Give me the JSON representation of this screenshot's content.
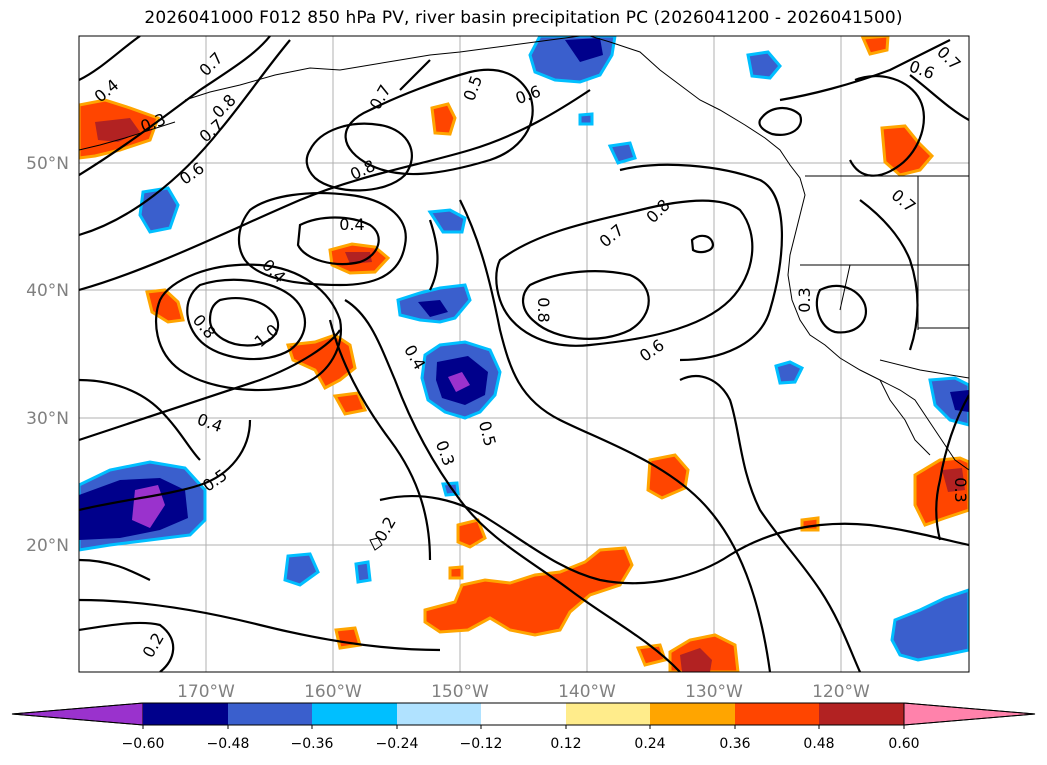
{
  "title": "2026041000 F012 850 hPa PV, river basin precipitation PC (2026041200 - 2026041500)",
  "lat_labels": [
    "50°N",
    "40°N",
    "30°N",
    "20°N"
  ],
  "lon_labels": [
    "170°W",
    "160°W",
    "150°W",
    "140°W",
    "130°W",
    "120°W"
  ],
  "contour_labels": [
    "0.4",
    "0.7",
    "0.8",
    "0.7",
    "0.6",
    "0.5",
    "0.6",
    "0.7",
    "0.6",
    "0.8",
    "0.4",
    "0.7",
    "0.8",
    "0.7",
    "0.8",
    "1.0",
    "0.8",
    "0.3",
    "0.4",
    "0.4",
    "0.3",
    "0.5",
    "0.6",
    "0.4",
    "0.5",
    "0.2",
    "0.3",
    "0.2",
    "0.7",
    "0.3"
  ],
  "colorbar": {
    "colors": [
      "#9a32cd",
      "#00008b",
      "#3a5fcd",
      "#00bfff",
      "#b0e2ff",
      "#ffffff",
      "#ffec8b",
      "#ffa500",
      "#ff4500",
      "#b22222",
      "#ff82ab"
    ],
    "tick_labels": [
      "−0.60",
      "−0.48",
      "−0.36",
      "−0.24",
      "−0.12",
      "0.12",
      "0.24",
      "0.36",
      "0.48",
      "0.60"
    ]
  },
  "colors": {
    "purple": "#9a32cd",
    "navy": "#00008b",
    "royal": "#3a5fcd",
    "sky": "#00bfff",
    "lightblue": "#b0e2ff",
    "yellow": "#ffec8b",
    "orange": "#ffa500",
    "orangered": "#ff4500",
    "firebrick": "#b22222",
    "pink": "#ff82ab"
  }
}
